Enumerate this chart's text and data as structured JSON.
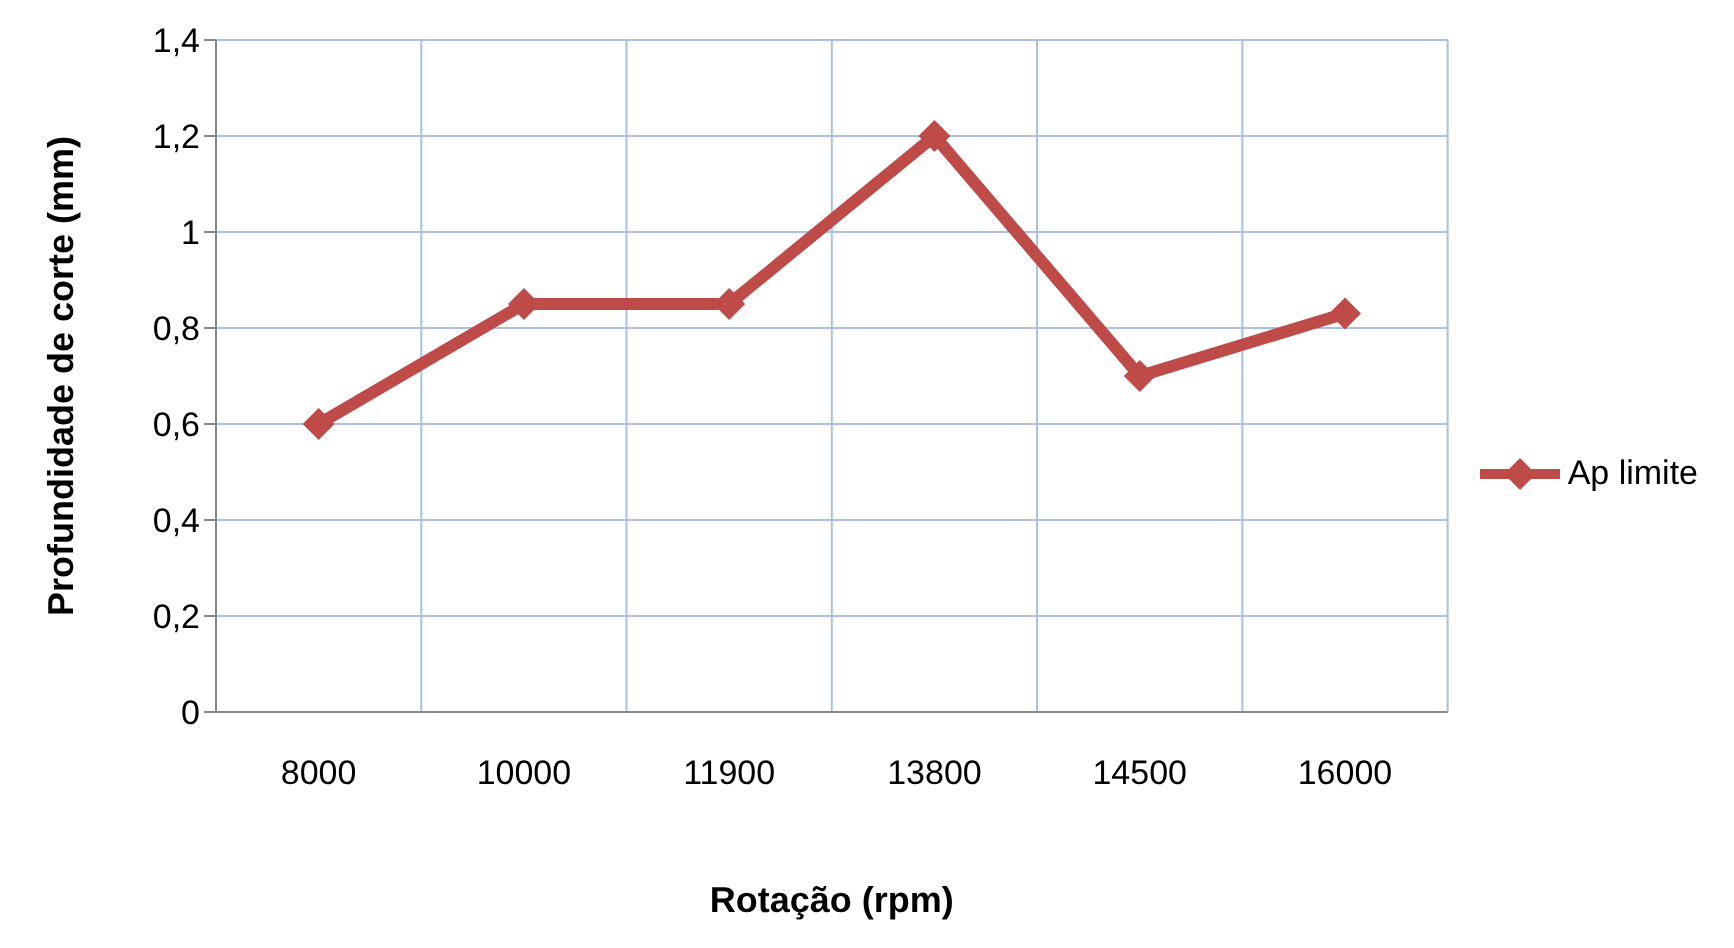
{
  "chart_data": {
    "type": "line",
    "xlabel": "Rotação (rpm)",
    "ylabel": "Profundidade de corte (mm)",
    "categories": [
      "8000",
      "10000",
      "11900",
      "13800",
      "14500",
      "16000"
    ],
    "series": [
      {
        "name": "Ap limite",
        "color": "#be4b48",
        "values": [
          0.6,
          0.85,
          0.85,
          1.2,
          0.7,
          0.83
        ]
      }
    ],
    "ylim": [
      0,
      1.4
    ],
    "yticks": [
      {
        "value": 0,
        "label": "0"
      },
      {
        "value": 0.2,
        "label": "0,2"
      },
      {
        "value": 0.4,
        "label": "0,4"
      },
      {
        "value": 0.6,
        "label": "0,6"
      },
      {
        "value": 0.8,
        "label": "0,8"
      },
      {
        "value": 1,
        "label": "1"
      },
      {
        "value": 1.2,
        "label": "1,2"
      },
      {
        "value": 1.4,
        "label": "1,4"
      }
    ],
    "grid": true,
    "legend": "right",
    "marker": "diamond"
  }
}
